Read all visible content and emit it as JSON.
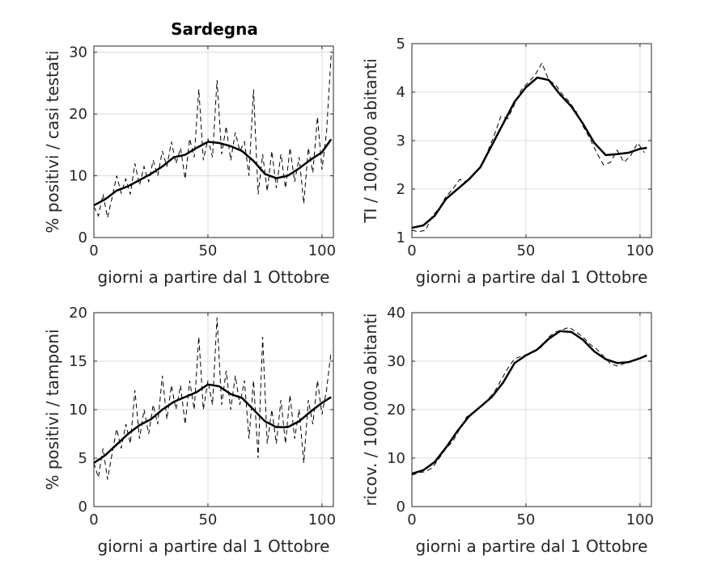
{
  "figure": {
    "title": "Sardegna"
  },
  "chart_data": [
    {
      "type": "line",
      "title": "Sardegna",
      "xlabel": "giorni a partire dal 1 Ottobre",
      "ylabel": "% positivi / casi testati",
      "xlim": [
        0,
        105
      ],
      "ylim": [
        0,
        31
      ],
      "xticks": [
        0,
        50,
        100
      ],
      "yticks": [
        0,
        10,
        20,
        30
      ],
      "grid": true,
      "series": [
        {
          "style": "solid",
          "x": [
            0,
            5,
            10,
            15,
            20,
            25,
            30,
            35,
            40,
            45,
            50,
            55,
            60,
            65,
            70,
            75,
            80,
            85,
            90,
            95,
            100,
            104
          ],
          "y": [
            5.2,
            6.2,
            7.6,
            8.3,
            9.3,
            10.3,
            11.5,
            13.0,
            13.4,
            14.5,
            15.5,
            15.3,
            14.8,
            14.0,
            12.4,
            10.3,
            9.6,
            10.0,
            11.2,
            12.6,
            13.8,
            15.9
          ]
        },
        {
          "style": "dashed",
          "x": [
            0,
            2,
            4,
            6,
            8,
            10,
            12,
            14,
            16,
            18,
            20,
            22,
            24,
            26,
            28,
            30,
            32,
            34,
            36,
            38,
            40,
            42,
            44,
            46,
            48,
            50,
            52,
            54,
            56,
            58,
            60,
            62,
            64,
            66,
            68,
            70,
            72,
            74,
            76,
            78,
            80,
            82,
            84,
            86,
            88,
            90,
            92,
            94,
            96,
            98,
            100,
            102,
            104
          ],
          "y": [
            5.0,
            3.5,
            7.0,
            3.2,
            6.5,
            10.0,
            7.2,
            9.5,
            7.0,
            12.0,
            8.5,
            11.5,
            9.0,
            12.5,
            10.0,
            14.0,
            11.5,
            15.5,
            12.0,
            14.5,
            9.5,
            16.0,
            13.0,
            24.0,
            12.5,
            16.0,
            13.0,
            25.5,
            13.5,
            18.0,
            12.5,
            17.0,
            14.0,
            15.5,
            10.0,
            24.0,
            7.0,
            13.5,
            7.5,
            14.0,
            8.0,
            13.5,
            8.0,
            14.5,
            9.0,
            13.0,
            5.5,
            14.5,
            10.5,
            19.5,
            11.0,
            17.0,
            29.5
          ]
        }
      ]
    },
    {
      "type": "line",
      "xlabel": "giorni a partire dal 1 Ottobre",
      "ylabel": "TI / 100,000 abitanti",
      "xlim": [
        0,
        105
      ],
      "ylim": [
        1,
        5
      ],
      "xticks": [
        0,
        50,
        100
      ],
      "yticks": [
        1,
        2,
        3,
        4,
        5
      ],
      "grid": true,
      "series": [
        {
          "style": "solid",
          "x": [
            0,
            5,
            10,
            15,
            20,
            25,
            30,
            35,
            40,
            45,
            50,
            55,
            60,
            65,
            70,
            75,
            80,
            85,
            90,
            95,
            100,
            103
          ],
          "y": [
            1.2,
            1.25,
            1.45,
            1.8,
            2.0,
            2.2,
            2.45,
            2.9,
            3.35,
            3.8,
            4.1,
            4.3,
            4.25,
            3.95,
            3.7,
            3.35,
            2.95,
            2.7,
            2.72,
            2.75,
            2.83,
            2.85
          ]
        },
        {
          "style": "dashed",
          "x": [
            0,
            3,
            6,
            9,
            12,
            15,
            18,
            21,
            24,
            27,
            30,
            33,
            36,
            39,
            42,
            45,
            48,
            51,
            54,
            57,
            60,
            63,
            66,
            69,
            72,
            75,
            78,
            81,
            84,
            87,
            90,
            93,
            96,
            99,
            102
          ],
          "y": [
            1.15,
            1.12,
            1.15,
            1.45,
            1.6,
            1.85,
            2.0,
            2.2,
            2.15,
            2.3,
            2.45,
            2.75,
            3.1,
            3.5,
            3.45,
            3.75,
            4.05,
            4.2,
            4.35,
            4.6,
            4.25,
            4.15,
            3.95,
            3.8,
            3.6,
            3.3,
            3.05,
            2.75,
            2.5,
            2.55,
            2.8,
            2.55,
            2.7,
            2.95,
            2.75
          ]
        }
      ]
    },
    {
      "type": "line",
      "xlabel": "giorni a partire dal 1 Ottobre",
      "ylabel": "% positivi / tamponi",
      "xlim": [
        0,
        105
      ],
      "ylim": [
        0,
        20
      ],
      "xticks": [
        0,
        50,
        100
      ],
      "yticks": [
        0,
        5,
        10,
        15,
        20
      ],
      "grid": true,
      "series": [
        {
          "style": "solid",
          "x": [
            0,
            5,
            10,
            15,
            20,
            25,
            30,
            35,
            40,
            45,
            50,
            55,
            60,
            65,
            70,
            75,
            80,
            85,
            90,
            95,
            100,
            104
          ],
          "y": [
            4.5,
            5.3,
            6.4,
            7.5,
            8.4,
            9.0,
            10.0,
            10.8,
            11.3,
            11.8,
            12.6,
            12.4,
            11.6,
            11.2,
            10.0,
            8.8,
            8.2,
            8.2,
            8.8,
            9.8,
            10.7,
            11.3
          ]
        },
        {
          "style": "dashed",
          "x": [
            0,
            2,
            4,
            6,
            8,
            10,
            12,
            14,
            16,
            18,
            20,
            22,
            24,
            26,
            28,
            30,
            32,
            34,
            36,
            38,
            40,
            42,
            44,
            46,
            48,
            50,
            52,
            54,
            56,
            58,
            60,
            62,
            64,
            66,
            68,
            70,
            72,
            74,
            76,
            78,
            80,
            82,
            84,
            86,
            88,
            90,
            92,
            94,
            96,
            98,
            100,
            102,
            104
          ],
          "y": [
            4.5,
            3.0,
            6.0,
            2.8,
            5.5,
            8.0,
            6.0,
            8.5,
            6.5,
            12.0,
            7.0,
            10.0,
            7.5,
            10.5,
            8.5,
            13.5,
            9.0,
            12.5,
            10.0,
            12.5,
            8.5,
            13.0,
            10.0,
            17.5,
            10.0,
            13.0,
            10.5,
            19.5,
            10.5,
            14.0,
            10.0,
            13.5,
            10.5,
            13.0,
            7.0,
            13.0,
            5.0,
            17.5,
            6.5,
            10.0,
            6.5,
            11.0,
            6.5,
            11.5,
            7.0,
            10.0,
            4.5,
            11.0,
            8.5,
            13.0,
            9.5,
            12.0,
            16.0
          ]
        }
      ]
    },
    {
      "type": "line",
      "xlabel": "giorni a partire dal 1 Ottobre",
      "ylabel": "ricov. / 100,000 abitanti",
      "xlim": [
        0,
        105
      ],
      "ylim": [
        0,
        40
      ],
      "xticks": [
        0,
        50,
        100
      ],
      "yticks": [
        0,
        10,
        20,
        30,
        40
      ],
      "grid": true,
      "series": [
        {
          "style": "solid",
          "x": [
            0,
            5,
            10,
            15,
            20,
            25,
            30,
            35,
            40,
            45,
            50,
            55,
            60,
            65,
            70,
            75,
            80,
            85,
            90,
            95,
            100,
            103
          ],
          "y": [
            6.8,
            7.5,
            9.2,
            12.2,
            15.6,
            18.6,
            20.6,
            22.6,
            25.6,
            29.6,
            31.2,
            32.4,
            34.6,
            36.2,
            36.0,
            34.4,
            32.0,
            30.4,
            29.6,
            29.8,
            30.6,
            31.2
          ]
        },
        {
          "style": "dashed",
          "x": [
            0,
            3,
            6,
            9,
            12,
            15,
            18,
            21,
            24,
            27,
            30,
            33,
            36,
            39,
            42,
            45,
            48,
            51,
            54,
            57,
            60,
            63,
            66,
            69,
            72,
            75,
            78,
            81,
            84,
            87,
            90,
            93,
            96,
            99,
            102
          ],
          "y": [
            6.5,
            7.0,
            7.2,
            8.0,
            10.0,
            12.0,
            13.5,
            16.0,
            18.5,
            19.5,
            20.5,
            22.0,
            23.5,
            26.0,
            28.5,
            30.5,
            31.0,
            31.5,
            32.0,
            33.0,
            35.0,
            36.0,
            36.5,
            37.0,
            36.0,
            35.0,
            33.5,
            32.5,
            31.0,
            29.5,
            29.0,
            29.5,
            30.0,
            30.5,
            30.8
          ]
        }
      ]
    }
  ]
}
